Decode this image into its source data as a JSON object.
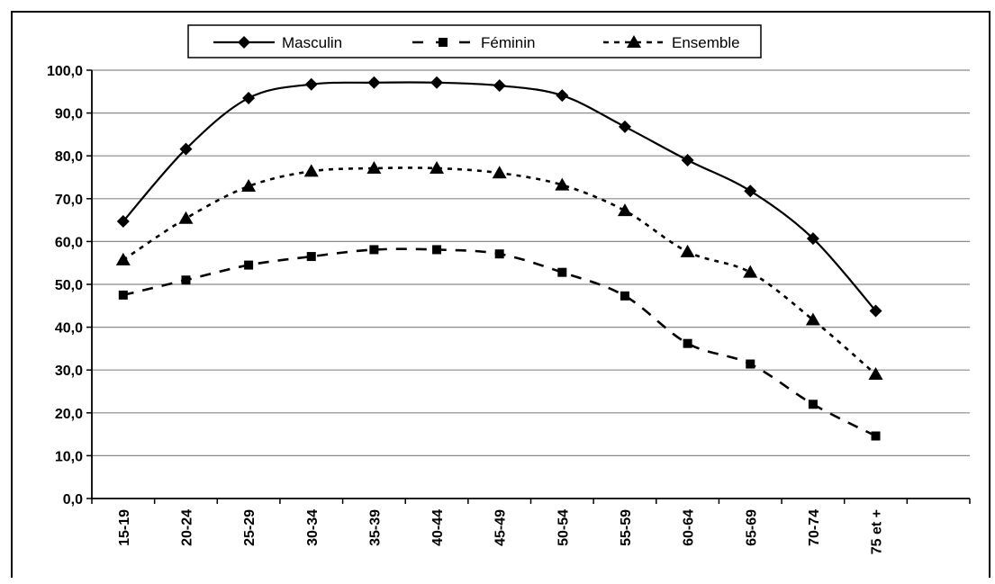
{
  "chart_data": {
    "type": "line",
    "categories": [
      "15-19",
      "20-24",
      "25-29",
      "30-34",
      "35-39",
      "40-44",
      "45-49",
      "50-54",
      "55-59",
      "60-64",
      "65-69",
      "70-74",
      "75 et +"
    ],
    "series": [
      {
        "name": "Masculin",
        "values": [
          64.7,
          81.6,
          93.5,
          96.7,
          97.1,
          97.1,
          96.4,
          94.1,
          86.8,
          79.0,
          71.8,
          60.7,
          43.8
        ],
        "line_style": "solid",
        "marker": "diamond"
      },
      {
        "name": "Féminin",
        "values": [
          47.5,
          51.0,
          54.5,
          56.5,
          58.1,
          58.1,
          57.1,
          52.8,
          47.3,
          36.2,
          31.4,
          22.0,
          14.6
        ],
        "line_style": "dashed",
        "marker": "square"
      },
      {
        "name": "Ensemble",
        "values": [
          55.7,
          65.4,
          72.9,
          76.4,
          77.1,
          77.1,
          76.0,
          73.2,
          67.2,
          57.6,
          52.8,
          41.7,
          29.0
        ],
        "line_style": "dotted",
        "marker": "triangle"
      }
    ],
    "ylim": [
      0,
      100
    ],
    "yticks": [
      0,
      10,
      20,
      30,
      40,
      50,
      60,
      70,
      80,
      90,
      100
    ],
    "ytick_labels": [
      "0,0",
      "10,0",
      "20,0",
      "30,0",
      "40,0",
      "50,0",
      "60,0",
      "70,0",
      "80,0",
      "90,0",
      "100,0"
    ],
    "grid": true,
    "legend_position": "top"
  }
}
